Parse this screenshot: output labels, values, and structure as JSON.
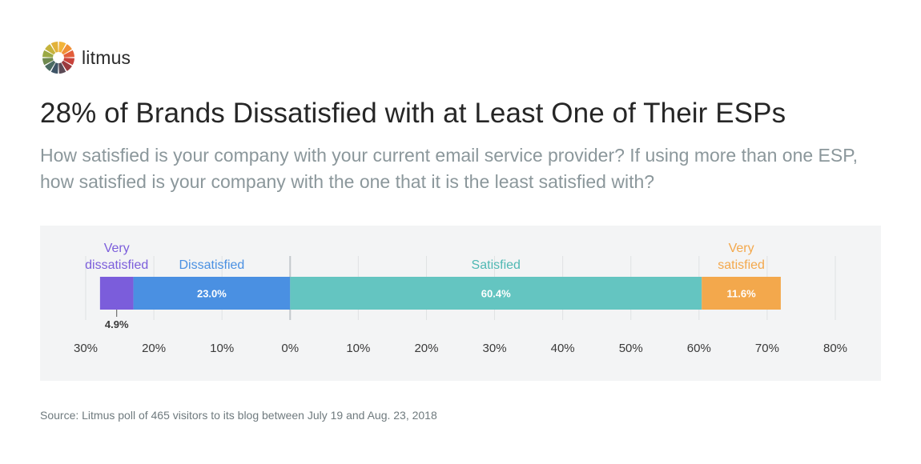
{
  "brand": {
    "name": "litmus"
  },
  "header": {
    "title": "28% of Brands Dissatisfied with at Least One of Their ESPs",
    "subtitle": "How satisfied is your company with your current email service provider? If using more than one ESP, how satisfied is your company with the one that it is the least satisfied with?"
  },
  "chart_data": {
    "type": "bar",
    "orientation": "horizontal",
    "stacked": "diverging",
    "xlim": [
      -30,
      80
    ],
    "ticks": [
      -30,
      -20,
      -10,
      0,
      10,
      20,
      30,
      40,
      50,
      60,
      70,
      80
    ],
    "tick_labels": [
      "30%",
      "20%",
      "10%",
      "0%",
      "10%",
      "20%",
      "30%",
      "40%",
      "50%",
      "60%",
      "70%",
      "80%"
    ],
    "grid": true,
    "segments": [
      {
        "label_lines": [
          "Very",
          "dissatisfied"
        ],
        "value": 4.9,
        "direction": "negative",
        "value_label": "4.9%",
        "color": "#7b5ddb",
        "label_color": "#7b5ddb"
      },
      {
        "label_lines": [
          "Dissatisfied"
        ],
        "value": 23.0,
        "direction": "negative",
        "value_label": "23.0%",
        "color": "#4a90e2",
        "label_color": "#4a90e2"
      },
      {
        "label_lines": [
          "Satisfied"
        ],
        "value": 60.4,
        "direction": "positive",
        "value_label": "60.4%",
        "color": "#64c5c1",
        "label_color": "#4fb8b3"
      },
      {
        "label_lines": [
          "Very",
          "satisfied"
        ],
        "value": 11.6,
        "direction": "positive",
        "value_label": "11.6%",
        "color": "#f3a84c",
        "label_color": "#f3a84c"
      }
    ]
  },
  "footer": {
    "source": "Source: Litmus poll of 465 visitors to its blog between July 19 and Aug. 23, 2018"
  }
}
